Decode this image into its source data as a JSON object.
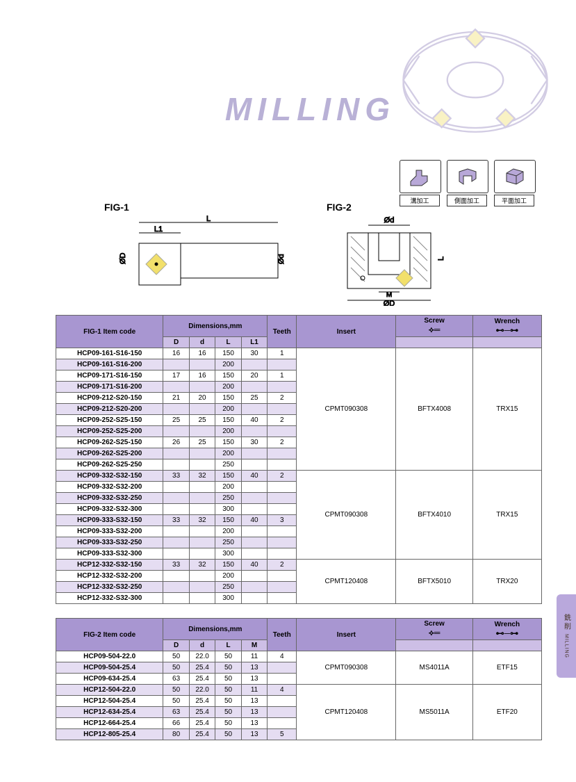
{
  "hero": {
    "title": "MILLING",
    "title_color": "#b9b1d6"
  },
  "mode_icons": [
    {
      "label": "溝加工"
    },
    {
      "label": "側面加工"
    },
    {
      "label": "平面加工"
    }
  ],
  "figures": {
    "fig1_label": "FIG-1",
    "fig2_label": "FIG-2",
    "fig1_dims": [
      "L",
      "L1",
      "ØD",
      "Ød"
    ],
    "fig2_dims": [
      "Ød",
      "L",
      "M",
      "ØD"
    ]
  },
  "table1": {
    "header": {
      "code": "FIG-1 Item code",
      "dims": "Dimensions,mm",
      "teeth": "Teeth",
      "insert": "Insert",
      "screw": "Screw",
      "wrench": "Wrench",
      "D": "D",
      "d": "d",
      "L": "L",
      "L1": "L1"
    },
    "col_widths": [
      "140",
      "34",
      "34",
      "34",
      "34",
      "38",
      "130",
      "100",
      "90"
    ],
    "header_bg": "#a896d1",
    "alt_bg": "#e5ddf2",
    "rows": [
      {
        "code": "HCP09-161-S16-150",
        "D": "16",
        "d": "16",
        "L": "150",
        "L1": "30",
        "T": "1",
        "insert": "CPMT090308",
        "screw": "BFTX4008",
        "wrench": "TRX15",
        "alt": false,
        "ins_span": 11,
        "sc_span": 11,
        "wr_span": 11
      },
      {
        "code": "HCP09-161-S16-200",
        "D": "",
        "d": "",
        "L": "200",
        "L1": "",
        "T": "",
        "alt": true
      },
      {
        "code": "HCP09-171-S16-150",
        "D": "17",
        "d": "16",
        "L": "150",
        "L1": "20",
        "T": "1",
        "alt": false
      },
      {
        "code": "HCP09-171-S16-200",
        "D": "",
        "d": "",
        "L": "200",
        "L1": "",
        "T": "",
        "alt": true
      },
      {
        "code": "HCP09-212-S20-150",
        "D": "21",
        "d": "20",
        "L": "150",
        "L1": "25",
        "T": "2",
        "alt": false
      },
      {
        "code": "HCP09-212-S20-200",
        "D": "",
        "d": "",
        "L": "200",
        "L1": "",
        "T": "",
        "alt": true
      },
      {
        "code": "HCP09-252-S25-150",
        "D": "25",
        "d": "25",
        "L": "150",
        "L1": "40",
        "T": "2",
        "alt": false
      },
      {
        "code": "HCP09-252-S25-200",
        "D": "",
        "d": "",
        "L": "200",
        "L1": "",
        "T": "",
        "alt": true
      },
      {
        "code": "HCP09-262-S25-150",
        "D": "26",
        "d": "25",
        "L": "150",
        "L1": "30",
        "T": "2",
        "alt": false
      },
      {
        "code": "HCP09-262-S25-200",
        "D": "",
        "d": "",
        "L": "200",
        "L1": "",
        "T": "",
        "alt": true
      },
      {
        "code": "HCP09-262-S25-250",
        "D": "",
        "d": "",
        "L": "250",
        "L1": "",
        "T": "",
        "alt": false
      },
      {
        "code": "HCP09-332-S32-150",
        "D": "33",
        "d": "32",
        "L": "150",
        "L1": "40",
        "T": "2",
        "insert": "CPMT090308",
        "screw": "BFTX4010",
        "wrench": "TRX15",
        "alt": true,
        "ins_span": 8,
        "sc_span": 8,
        "wr_span": 8
      },
      {
        "code": "HCP09-332-S32-200",
        "D": "",
        "d": "",
        "L": "200",
        "L1": "",
        "T": "",
        "alt": false
      },
      {
        "code": "HCP09-332-S32-250",
        "D": "",
        "d": "",
        "L": "250",
        "L1": "",
        "T": "",
        "alt": true
      },
      {
        "code": "HCP09-332-S32-300",
        "D": "",
        "d": "",
        "L": "300",
        "L1": "",
        "T": "",
        "alt": false
      },
      {
        "code": "HCP09-333-S32-150",
        "D": "33",
        "d": "32",
        "L": "150",
        "L1": "40",
        "T": "3",
        "alt": true
      },
      {
        "code": "HCP09-333-S32-200",
        "D": "",
        "d": "",
        "L": "200",
        "L1": "",
        "T": "",
        "alt": false
      },
      {
        "code": "HCP09-333-S32-250",
        "D": "",
        "d": "",
        "L": "250",
        "L1": "",
        "T": "",
        "alt": true
      },
      {
        "code": "HCP09-333-S32-300",
        "D": "",
        "d": "",
        "L": "300",
        "L1": "",
        "T": "",
        "alt": false
      },
      {
        "code": "HCP12-332-S32-150",
        "D": "33",
        "d": "32",
        "L": "150",
        "L1": "40",
        "T": "2",
        "insert": "CPMT120408",
        "screw": "BFTX5010",
        "wrench": "TRX20",
        "alt": true,
        "ins_span": 4,
        "sc_span": 4,
        "wr_span": 4
      },
      {
        "code": "HCP12-332-S32-200",
        "D": "",
        "d": "",
        "L": "200",
        "L1": "",
        "T": "",
        "alt": false
      },
      {
        "code": "HCP12-332-S32-250",
        "D": "",
        "d": "",
        "L": "250",
        "L1": "",
        "T": "",
        "alt": true
      },
      {
        "code": "HCP12-332-S32-300",
        "D": "",
        "d": "",
        "L": "300",
        "L1": "",
        "T": "",
        "alt": false
      }
    ]
  },
  "table2": {
    "header": {
      "code": "FIG-2 Item code",
      "dims": "Dimensions,mm",
      "teeth": "Teeth",
      "insert": "Insert",
      "screw": "Screw",
      "wrench": "Wrench",
      "D": "D",
      "d": "d",
      "L": "L",
      "M": "M"
    },
    "col_widths": [
      "140",
      "34",
      "34",
      "34",
      "34",
      "38",
      "130",
      "100",
      "90"
    ],
    "rows": [
      {
        "code": "HCP09-504-22.0",
        "D": "50",
        "d": "22.0",
        "L": "50",
        "M": "11",
        "T": "4",
        "insert": "CPMT090308",
        "screw": "MS4011A",
        "wrench": "ETF15",
        "alt": false,
        "ins_span": 3,
        "sc_span": 3,
        "wr_span": 3
      },
      {
        "code": "HCP09-504-25.4",
        "D": "50",
        "d": "25.4",
        "L": "50",
        "M": "13",
        "T": "",
        "alt": true
      },
      {
        "code": "HCP09-634-25.4",
        "D": "63",
        "d": "25.4",
        "L": "50",
        "M": "13",
        "T": "",
        "alt": false
      },
      {
        "code": "HCP12-504-22.0",
        "D": "50",
        "d": "22.0",
        "L": "50",
        "M": "11",
        "T": "4",
        "insert": "CPMT120408",
        "screw": "MS5011A",
        "wrench": "ETF20",
        "alt": true,
        "ins_span": 5,
        "sc_span": 5,
        "wr_span": 5
      },
      {
        "code": "HCP12-504-25.4",
        "D": "50",
        "d": "25.4",
        "L": "50",
        "M": "13",
        "T": "",
        "alt": false
      },
      {
        "code": "HCP12-634-25.4",
        "D": "63",
        "d": "25.4",
        "L": "50",
        "M": "13",
        "T": "",
        "alt": true
      },
      {
        "code": "HCP12-664-25.4",
        "D": "66",
        "d": "25.4",
        "L": "50",
        "M": "13",
        "T": "",
        "alt": false
      },
      {
        "code": "HCP12-805-25.4",
        "D": "80",
        "d": "25.4",
        "L": "50",
        "M": "13",
        "T": "5",
        "alt": true
      }
    ]
  },
  "side_tab": {
    "cn": "銑 削",
    "en": "MILLING"
  }
}
